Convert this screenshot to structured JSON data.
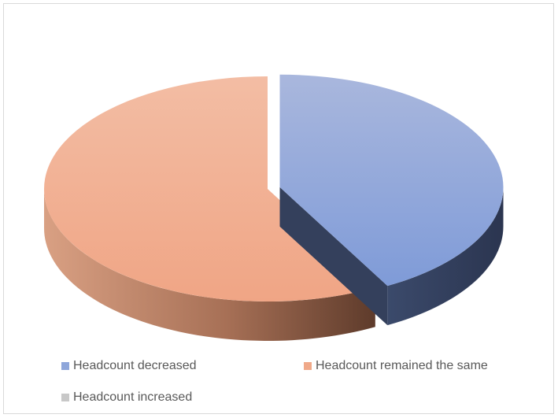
{
  "chart_data": {
    "type": "pie",
    "three_d": true,
    "title": "",
    "legend_position": "bottom",
    "slices": [
      {
        "label": "Headcount decreased",
        "value": 42,
        "color": "#8EA6DA",
        "exploded": true
      },
      {
        "label": "Headcount remained the same",
        "value": 58,
        "color": "#F0A989",
        "exploded": false
      },
      {
        "label": "Headcount increased",
        "value": 0,
        "color": "#c8c8c8",
        "exploded": false
      }
    ]
  }
}
